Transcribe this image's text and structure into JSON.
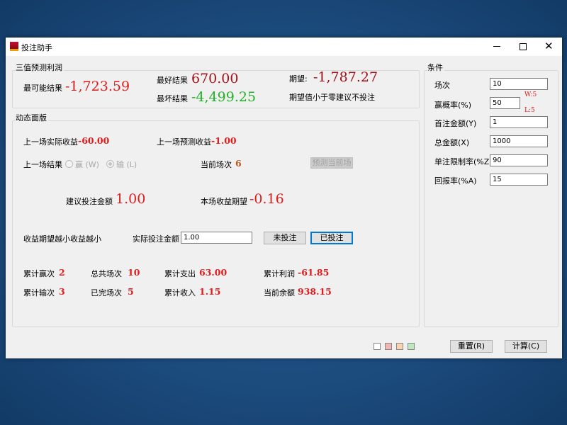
{
  "window": {
    "title": "投注助手",
    "app_icon": "app-logo-icon",
    "controls": [
      "minimize-icon",
      "maximize-icon",
      "close-icon"
    ]
  },
  "forecast": {
    "group_label": "三值预测利润",
    "most_likely_label": "最可能结果",
    "most_likely_value": "-1,723.59",
    "best_label": "最好结果",
    "best_value": "670.00",
    "worst_label": "最坏结果",
    "worst_value": "-4,499.25",
    "expect_label": "期望:",
    "expect_value": "-1,787.27",
    "advice": "期望值小于零建议不投注"
  },
  "dynamic": {
    "group_label": "动态面版",
    "last_actual_label": "上一场实际收益",
    "last_actual_value": "-60.00",
    "last_pred_label": "上一场预测收益",
    "last_pred_value": "-1.00",
    "last_result_label": "上一场结果",
    "radio_win": "赢 (W)",
    "radio_lose": "输 (L)",
    "selected": "输 (L)",
    "current_round_label": "当前场次",
    "current_round_value": "6",
    "predict_button": "预测当前场",
    "suggest_label": "建议投注金额",
    "suggest_value": "1.00",
    "round_expect_label": "本场收益期望",
    "round_expect_value": "-0.16",
    "hint": "收益期望越小收益越小",
    "actual_bet_label": "实际投注金额",
    "actual_bet_value": "1.00",
    "not_bet_button": "未投注",
    "bet_button": "已投注",
    "stats": [
      {
        "label": "累计赢次",
        "value": "2"
      },
      {
        "label": "总共场次",
        "value": "10"
      },
      {
        "label": "累计支出",
        "value": "63.00"
      },
      {
        "label": "累计利润",
        "value": "-61.85"
      },
      {
        "label": "累计输次",
        "value": "3"
      },
      {
        "label": "已完场次",
        "value": "5"
      },
      {
        "label": "累计收入",
        "value": "1.15"
      },
      {
        "label": "当前余额",
        "value": "938.15"
      }
    ]
  },
  "conditions": {
    "group_label": "条件",
    "fields": [
      {
        "label": "场次",
        "value": "10"
      },
      {
        "label": "赢概率(%)",
        "value": "50"
      },
      {
        "label": "首注金额(Y)",
        "value": "1"
      },
      {
        "label": "总金额(X)",
        "value": "1000"
      },
      {
        "label": "单注限制率(%Z)",
        "value": "90"
      },
      {
        "label": "回报率(%A)",
        "value": "15"
      }
    ],
    "win_count": "W:5",
    "lose_count": "L:5"
  },
  "footer": {
    "swatches": [
      "#ffffff",
      "#f2b3b3",
      "#f8d3ad",
      "#bde8bd"
    ],
    "reset_button": "重置(R)",
    "calc_button": "计算(C)"
  },
  "colors": {
    "negative": "#e21a1a",
    "dark_red": "#a50e16",
    "positive": "#1fb325",
    "accent": "#0078d7"
  }
}
